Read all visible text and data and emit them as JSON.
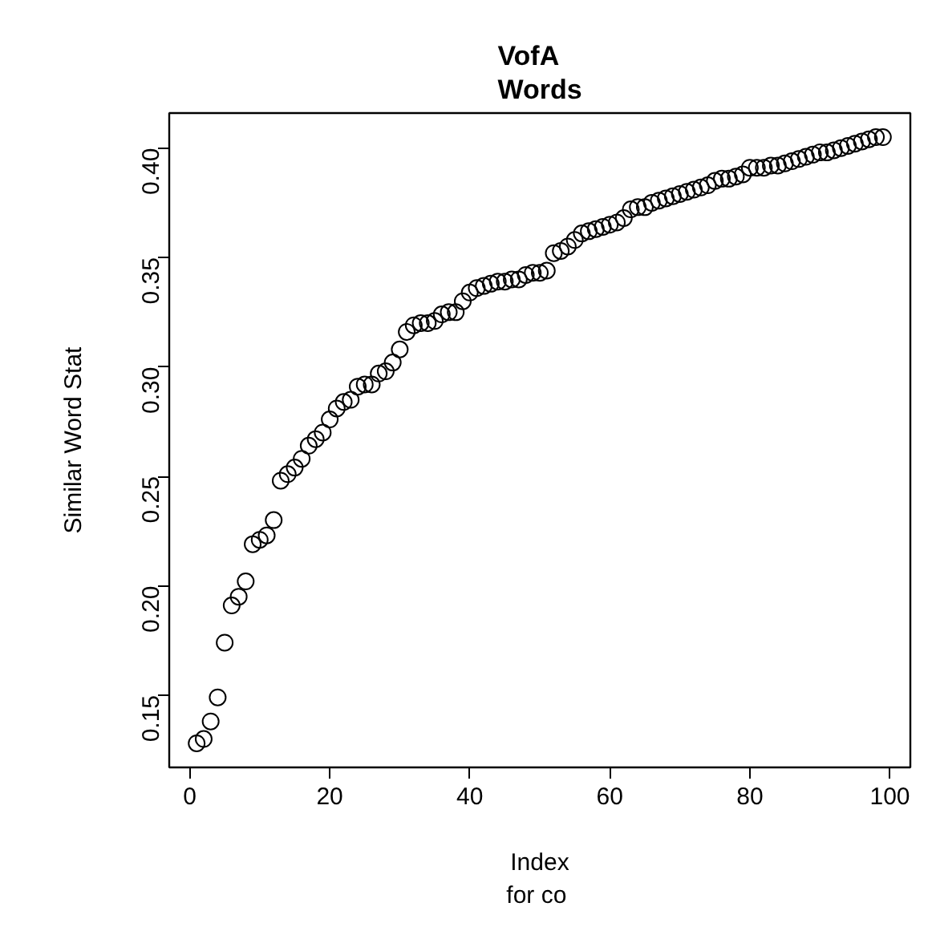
{
  "chart_data": {
    "type": "scatter",
    "title": "VofA\nWords",
    "xlabel": "Index\nfor  co",
    "ylabel": "Similar Word Stat",
    "x": [
      1,
      2,
      3,
      4,
      5,
      6,
      7,
      8,
      9,
      10,
      11,
      12,
      13,
      14,
      15,
      16,
      17,
      18,
      19,
      20,
      21,
      22,
      23,
      24,
      25,
      26,
      27,
      28,
      29,
      30,
      31,
      32,
      33,
      34,
      35,
      36,
      37,
      38,
      39,
      40,
      41,
      42,
      43,
      44,
      45,
      46,
      47,
      48,
      49,
      50,
      51,
      52,
      53,
      54,
      55,
      56,
      57,
      58,
      59,
      60,
      61,
      62,
      63,
      64,
      65,
      66,
      67,
      68,
      69,
      70,
      71,
      72,
      73,
      74,
      75,
      76,
      77,
      78,
      79,
      80,
      81,
      82,
      83,
      84,
      85,
      86,
      87,
      88,
      89,
      90,
      91,
      92,
      93,
      94,
      95,
      96,
      97,
      98,
      99
    ],
    "values": [
      0.128,
      0.13,
      0.138,
      0.149,
      0.174,
      0.191,
      0.195,
      0.202,
      0.219,
      0.221,
      0.223,
      0.23,
      0.248,
      0.251,
      0.254,
      0.258,
      0.264,
      0.267,
      0.27,
      0.276,
      0.281,
      0.284,
      0.285,
      0.291,
      0.292,
      0.292,
      0.297,
      0.298,
      0.302,
      0.308,
      0.316,
      0.319,
      0.32,
      0.32,
      0.321,
      0.324,
      0.325,
      0.325,
      0.33,
      0.334,
      0.336,
      0.337,
      0.338,
      0.339,
      0.339,
      0.34,
      0.34,
      0.342,
      0.343,
      0.343,
      0.344,
      0.352,
      0.353,
      0.355,
      0.358,
      0.361,
      0.362,
      0.363,
      0.364,
      0.365,
      0.366,
      0.368,
      0.372,
      0.373,
      0.373,
      0.375,
      0.376,
      0.377,
      0.378,
      0.379,
      0.38,
      0.381,
      0.382,
      0.383,
      0.385,
      0.386,
      0.386,
      0.387,
      0.388,
      0.391,
      0.391,
      0.391,
      0.392,
      0.392,
      0.393,
      0.394,
      0.395,
      0.396,
      0.397,
      0.398,
      0.398,
      0.399,
      0.4,
      0.401,
      0.402,
      0.403,
      0.404,
      0.405,
      0.405
    ],
    "color": "#000000",
    "marker": "circle",
    "grid": false,
    "xlim": [
      -2.92,
      102.92
    ],
    "ylim": [
      0.117,
      0.416
    ],
    "xticks": [
      0,
      20,
      40,
      60,
      80,
      100
    ],
    "yticks": [
      {
        "value": 0.15,
        "label": "0.15"
      },
      {
        "value": 0.2,
        "label": "0.20"
      },
      {
        "value": 0.25,
        "label": "0.25"
      },
      {
        "value": 0.3,
        "label": "0.30"
      },
      {
        "value": 0.35,
        "label": "0.35"
      },
      {
        "value": 0.4,
        "label": "0.40"
      }
    ]
  }
}
